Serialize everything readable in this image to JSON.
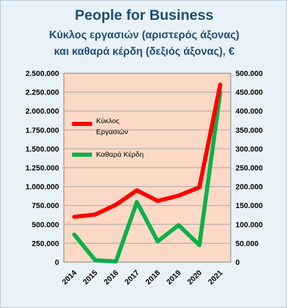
{
  "title_lines": [
    "People for Business",
    "Κύκλος εργασιών (αριστερός άξονας)",
    "και καθαρά κέρδη (δεξιός άξονας), €"
  ],
  "chart_data": {
    "type": "line",
    "title": "People for Business",
    "subtitle": "Κύκλος εργασιών (αριστερός άξονας) και καθαρά κέρδη (δεξιός άξονας), €",
    "x": [
      "2014",
      "2015",
      "2016",
      "2017",
      "2018",
      "2019",
      "2020",
      "2021"
    ],
    "series": [
      {
        "name_lines": [
          "Κύκλος",
          "Εργασιών"
        ],
        "axis": "left",
        "color": "#ff0000",
        "values": [
          600000,
          630000,
          760000,
          950000,
          810000,
          880000,
          990000,
          2350000
        ]
      },
      {
        "name_lines": [
          "Καθαρά Κέρδη"
        ],
        "axis": "right",
        "color": "#0cb04b",
        "values": [
          73000,
          5000,
          2000,
          159000,
          55000,
          98000,
          45000,
          450000
        ]
      }
    ],
    "left_axis": {
      "ylim": [
        0,
        2500000
      ],
      "ticks": [
        "0",
        "250.000",
        "500.000",
        "750.000",
        "1.000.000",
        "1.250.000",
        "1.500.000",
        "1.750.000",
        "2.000.000",
        "2.250.000",
        "2.500.000"
      ]
    },
    "right_axis": {
      "ylim": [
        0,
        500000
      ],
      "ticks": [
        "0",
        "50.000",
        "100.000",
        "150.000",
        "200.000",
        "250.000",
        "300.000",
        "350.000",
        "400.000",
        "450.000",
        "500.000"
      ]
    },
    "grid": true,
    "legend_position": "upper-left inside plot",
    "colors": {
      "plot_background": "#fbd9c6",
      "page_background": "#e9f2f8",
      "title": "#1f4e79",
      "grid": "#a6a6a6"
    }
  }
}
